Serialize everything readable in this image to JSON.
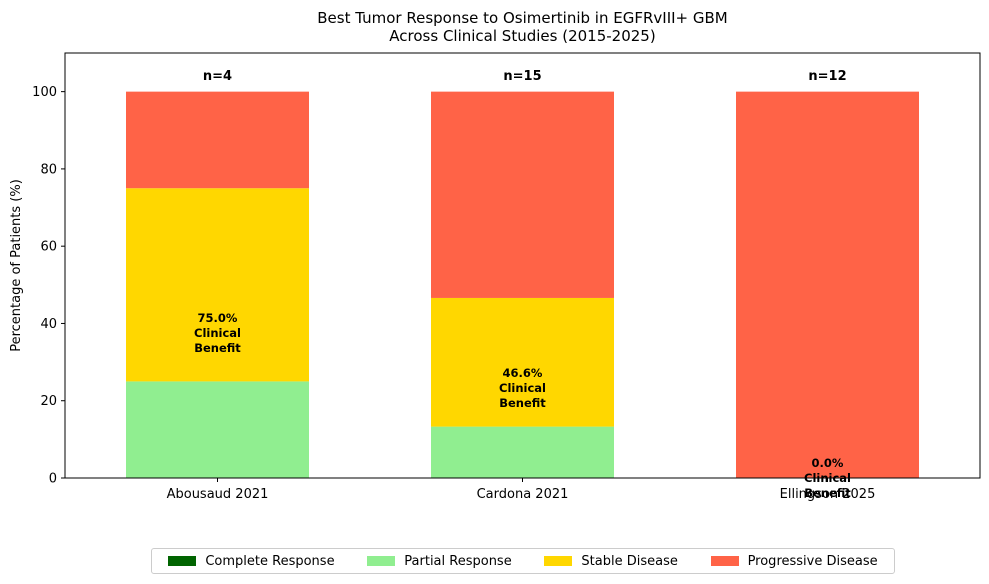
{
  "chart_data": {
    "type": "bar",
    "stacked": true,
    "title": "Best Tumor Response to Osimertinib in EGFRvIII+ GBM\nAcross Clinical Studies (2015-2025)",
    "xlabel": "",
    "ylabel": "Percentage of Patients (%)",
    "ylim": [
      0,
      110
    ],
    "yticks": [
      0,
      20,
      40,
      60,
      80,
      100
    ],
    "grid": false,
    "legend_position": "bottom-center",
    "categories": [
      "Abousaud 2021",
      "Cardona 2021",
      "Ellingson 2025"
    ],
    "sample_sizes": [
      "n=4",
      "n=15",
      "n=12"
    ],
    "benefit_labels": [
      [
        "75.0%",
        "Clinical",
        "Benefit"
      ],
      [
        "46.6%",
        "Clinical",
        "Benefit"
      ],
      [
        "0.0%",
        "Clinical",
        "Benefit"
      ]
    ],
    "series": [
      {
        "name": "Complete Response",
        "color": "#006400",
        "values": [
          0,
          0,
          0
        ]
      },
      {
        "name": "Partial Response",
        "color": "#90ee90",
        "values": [
          25,
          13.3,
          0
        ]
      },
      {
        "name": "Stable Disease",
        "color": "#ffd700",
        "values": [
          50,
          33.3,
          0
        ]
      },
      {
        "name": "Progressive Disease",
        "color": "#ff6347",
        "values": [
          25,
          53.4,
          100
        ]
      }
    ]
  }
}
